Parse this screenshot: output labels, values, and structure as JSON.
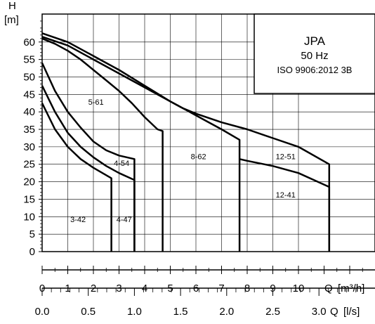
{
  "chart_data": {
    "type": "line",
    "ylabel": "H",
    "yunit": "[m]",
    "xlabel": "Q",
    "xunit": "[m³/h]",
    "x2label": "Q",
    "x2unit": "[l/s]",
    "xlim": [
      0,
      13
    ],
    "ylim": [
      0,
      65
    ],
    "x_ticks": [
      0,
      1,
      2,
      3,
      4,
      5,
      6,
      7,
      8,
      9,
      10
    ],
    "x_ticks_labels": [
      "0",
      "1",
      "2",
      "3",
      "4",
      "5",
      "6",
      "7",
      "8",
      "9",
      "10"
    ],
    "y_ticks": [
      0,
      5,
      10,
      15,
      20,
      25,
      30,
      35,
      40,
      45,
      50,
      55,
      60
    ],
    "x2_ticks": [
      0.0,
      0.5,
      1.0,
      1.5,
      2.0,
      2.5,
      3.0
    ],
    "x2_ticks_labels": [
      "0.0",
      "0.5",
      "1.0",
      "1.5",
      "2.0",
      "2.5",
      "3.0"
    ],
    "grid": true,
    "legend_box": {
      "title": "JPA",
      "subtitle": "50 Hz",
      "standard": "ISO 9906:2012 3B"
    },
    "series": [
      {
        "name": "3-42",
        "label_at": [
          1.4,
          8.5
        ],
        "points": [
          [
            0,
            42.5
          ],
          [
            0.5,
            35
          ],
          [
            1,
            30
          ],
          [
            1.5,
            26.5
          ],
          [
            2,
            24
          ],
          [
            2.7,
            21
          ],
          [
            2.7,
            0
          ]
        ]
      },
      {
        "name": "4-47",
        "label_at": [
          3.2,
          8.5
        ],
        "points": [
          [
            0,
            47.5
          ],
          [
            0.5,
            40
          ],
          [
            1,
            34
          ],
          [
            1.5,
            30
          ],
          [
            2,
            27
          ],
          [
            2.5,
            24.5
          ],
          [
            3.0,
            22.5
          ],
          [
            3.6,
            20.5
          ],
          [
            3.6,
            0
          ]
        ]
      },
      {
        "name": "4-54",
        "label_at": [
          3.1,
          24.5
        ],
        "points": [
          [
            0,
            54
          ],
          [
            0.5,
            46
          ],
          [
            1,
            40
          ],
          [
            1.5,
            35.5
          ],
          [
            2,
            31.5
          ],
          [
            2.5,
            29
          ],
          [
            3.0,
            27.5
          ],
          [
            3.6,
            26.5
          ],
          [
            3.6,
            0
          ]
        ]
      },
      {
        "name": "5-61",
        "label_at": [
          2.1,
          42
        ],
        "points": [
          [
            0,
            61
          ],
          [
            0.5,
            59.5
          ],
          [
            1,
            57.5
          ],
          [
            1.5,
            55
          ],
          [
            2,
            52
          ],
          [
            2.5,
            49
          ],
          [
            3,
            46
          ],
          [
            3.5,
            42.5
          ],
          [
            4,
            38.5
          ],
          [
            4.5,
            35
          ],
          [
            4.7,
            34.5
          ],
          [
            4.7,
            0
          ]
        ]
      },
      {
        "name": "8-62",
        "label_at": [
          6.1,
          26.5
        ],
        "points": [
          [
            0,
            61.5
          ],
          [
            1,
            59
          ],
          [
            2,
            55
          ],
          [
            3,
            51
          ],
          [
            4,
            47
          ],
          [
            5,
            43
          ],
          [
            5.5,
            41
          ],
          [
            6,
            39
          ],
          [
            6.5,
            37
          ],
          [
            7,
            35
          ],
          [
            7.7,
            32
          ],
          [
            7.7,
            0
          ]
        ]
      },
      {
        "name": "12-51",
        "label_at": [
          9.5,
          26.5
        ],
        "points": [
          [
            0,
            62.5
          ],
          [
            1,
            60
          ],
          [
            2,
            56
          ],
          [
            3,
            52
          ],
          [
            4,
            47.5
          ],
          [
            5,
            43
          ],
          [
            5.5,
            41
          ],
          [
            6,
            39.5
          ],
          [
            7,
            37
          ],
          [
            8,
            35
          ],
          [
            9,
            32.5
          ],
          [
            10,
            30
          ],
          [
            11.2,
            25
          ],
          [
            11.2,
            0
          ]
        ]
      },
      {
        "name": "12-41",
        "label_at": [
          9.5,
          15.5
        ],
        "points": [
          [
            7.7,
            26.5
          ],
          [
            8,
            26
          ],
          [
            9,
            24.5
          ],
          [
            10,
            22.5
          ],
          [
            11.2,
            18.5
          ],
          [
            11.2,
            0
          ]
        ]
      }
    ]
  }
}
